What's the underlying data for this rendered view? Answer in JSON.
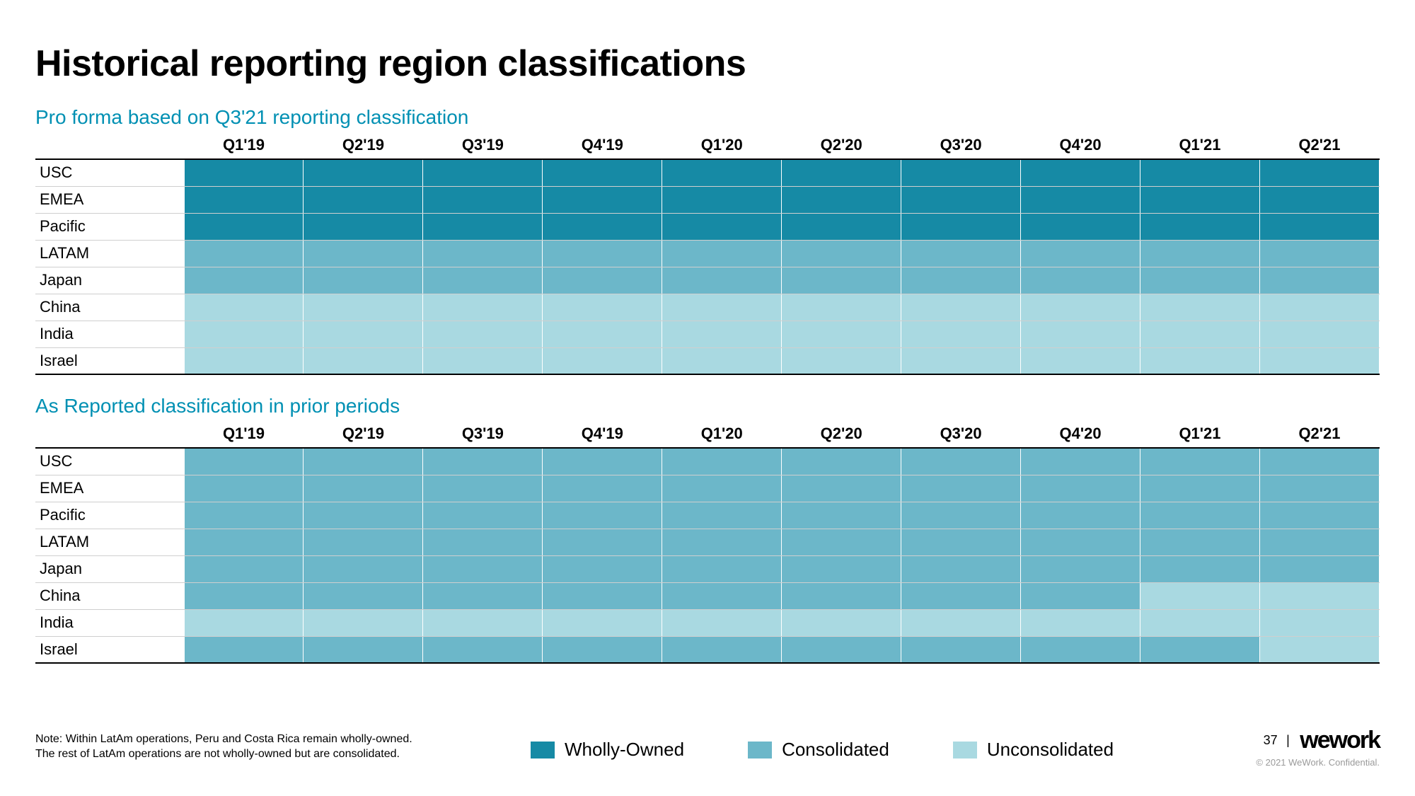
{
  "title": "Historical reporting region classifications",
  "colors": {
    "wholly_owned": "#168aa5",
    "consolidated": "#6cb7c9",
    "unconsolidated": "#a9d9e1",
    "subtitle": "#0090b3"
  },
  "quarters": [
    "Q1'19",
    "Q2'19",
    "Q3'19",
    "Q4'19",
    "Q1'20",
    "Q2'20",
    "Q3'20",
    "Q4'20",
    "Q1'21",
    "Q2'21"
  ],
  "regions": [
    "USC",
    "EMEA",
    "Pacific",
    "LATAM",
    "Japan",
    "China",
    "India",
    "Israel"
  ],
  "proforma": {
    "subtitle": "Pro forma based on Q3'21 reporting classification",
    "cells": {
      "USC": [
        "w",
        "w",
        "w",
        "w",
        "w",
        "w",
        "w",
        "w",
        "w",
        "w"
      ],
      "EMEA": [
        "w",
        "w",
        "w",
        "w",
        "w",
        "w",
        "w",
        "w",
        "w",
        "w"
      ],
      "Pacific": [
        "w",
        "w",
        "w",
        "w",
        "w",
        "w",
        "w",
        "w",
        "w",
        "w"
      ],
      "LATAM": [
        "c",
        "c",
        "c",
        "c",
        "c",
        "c",
        "c",
        "c",
        "c",
        "c"
      ],
      "Japan": [
        "c",
        "c",
        "c",
        "c",
        "c",
        "c",
        "c",
        "c",
        "c",
        "c"
      ],
      "China": [
        "u",
        "u",
        "u",
        "u",
        "u",
        "u",
        "u",
        "u",
        "u",
        "u"
      ],
      "India": [
        "u",
        "u",
        "u",
        "u",
        "u",
        "u",
        "u",
        "u",
        "u",
        "u"
      ],
      "Israel": [
        "u",
        "u",
        "u",
        "u",
        "u",
        "u",
        "u",
        "u",
        "u",
        "u"
      ]
    }
  },
  "asreported": {
    "subtitle": "As Reported classification in prior periods",
    "cells": {
      "USC": [
        "c",
        "c",
        "c",
        "c",
        "c",
        "c",
        "c",
        "c",
        "c",
        "c"
      ],
      "EMEA": [
        "c",
        "c",
        "c",
        "c",
        "c",
        "c",
        "c",
        "c",
        "c",
        "c"
      ],
      "Pacific": [
        "c",
        "c",
        "c",
        "c",
        "c",
        "c",
        "c",
        "c",
        "c",
        "c"
      ],
      "LATAM": [
        "c",
        "c",
        "c",
        "c",
        "c",
        "c",
        "c",
        "c",
        "c",
        "c"
      ],
      "Japan": [
        "c",
        "c",
        "c",
        "c",
        "c",
        "c",
        "c",
        "c",
        "c",
        "c"
      ],
      "China": [
        "c",
        "c",
        "c",
        "c",
        "c",
        "c",
        "c",
        "c",
        "u",
        "u"
      ],
      "India": [
        "u",
        "u",
        "u",
        "u",
        "u",
        "u",
        "u",
        "u",
        "u",
        "u"
      ],
      "Israel": [
        "c",
        "c",
        "c",
        "c",
        "c",
        "c",
        "c",
        "c",
        "c",
        "u"
      ]
    }
  },
  "legend": {
    "wholly": "Wholly-Owned",
    "consolidated": "Consolidated",
    "unconsolidated": "Unconsolidated"
  },
  "footnote_line1": "Note: Within LatAm operations, Peru and Costa Rica remain wholly-owned.",
  "footnote_line2": "The rest of LatAm operations are not wholly-owned but are consolidated.",
  "page_number": "37",
  "logo_text": "wework",
  "confidential": "© 2021 WeWork. Confidential."
}
